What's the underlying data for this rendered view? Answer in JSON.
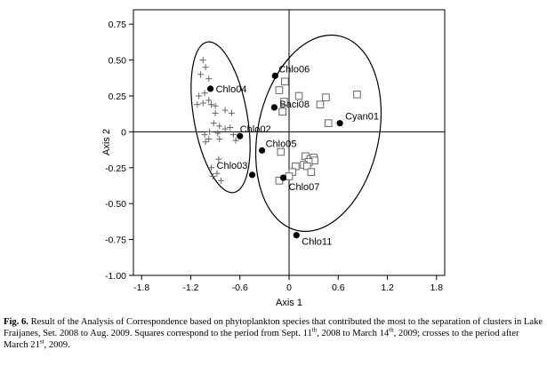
{
  "chart_data": {
    "type": "scatter",
    "title": "",
    "xlabel": "Axis 1",
    "ylabel": "Axis 2",
    "xlim": [
      -1.9,
      1.9
    ],
    "ylim": [
      -1.0,
      0.85
    ],
    "xticks": [
      -1.8,
      -1.2,
      -0.6,
      0,
      0.6,
      1.2,
      1.8
    ],
    "xtick_labels": [
      "-1.8",
      "-1.2",
      "-0.6",
      "0",
      "0.6",
      "1.2",
      "1.8"
    ],
    "yticks": [
      -1.0,
      -0.75,
      -0.5,
      -0.25,
      0,
      0.25,
      0.5,
      0.75
    ],
    "ytick_labels": [
      "-1.00",
      "-0.75",
      "-0.50",
      "-0.25",
      "0",
      "0.25",
      "0.50",
      "0.75"
    ],
    "reference_lines": {
      "x": 0,
      "y": 0
    },
    "grid": false,
    "legend": "none",
    "series": [
      {
        "marker": "cross",
        "color": "#666666",
        "points": [
          [
            -1.05,
            0.5
          ],
          [
            -1.02,
            0.45
          ],
          [
            -1.08,
            0.4
          ],
          [
            -0.98,
            0.37
          ],
          [
            -1.03,
            0.27
          ],
          [
            -1.1,
            0.25
          ],
          [
            -0.98,
            0.22
          ],
          [
            -1.05,
            0.2
          ],
          [
            -1.12,
            0.19
          ],
          [
            -0.95,
            0.19
          ],
          [
            -0.9,
            0.18
          ],
          [
            -0.78,
            0.15
          ],
          [
            -0.9,
            0.13
          ],
          [
            -0.92,
            0.06
          ],
          [
            -0.85,
            0.04
          ],
          [
            -0.78,
            0.02
          ],
          [
            -0.97,
            0.0
          ],
          [
            -0.87,
            -0.01
          ],
          [
            -1.03,
            -0.02
          ],
          [
            -0.68,
            -0.02
          ],
          [
            -0.72,
            0.03
          ],
          [
            -0.85,
            -0.05
          ],
          [
            -0.98,
            -0.05
          ],
          [
            -1.02,
            -0.07
          ],
          [
            -0.7,
            0.13
          ],
          [
            -0.65,
            -0.06
          ],
          [
            -0.95,
            -0.25
          ],
          [
            -0.88,
            -0.29
          ],
          [
            -0.93,
            -0.31
          ],
          [
            -0.83,
            -0.34
          ],
          [
            -0.86,
            -0.19
          ]
        ]
      },
      {
        "marker": "open-square",
        "color": "#666666",
        "points": [
          [
            -0.05,
            0.35
          ],
          [
            -0.12,
            0.29
          ],
          [
            0.12,
            0.25
          ],
          [
            0.45,
            0.24
          ],
          [
            0.83,
            0.26
          ],
          [
            -0.06,
            0.21
          ],
          [
            0.38,
            0.19
          ],
          [
            -0.08,
            0.14
          ],
          [
            0.48,
            0.06
          ],
          [
            -0.1,
            -0.14
          ],
          [
            0.2,
            -0.17
          ],
          [
            0.26,
            -0.19
          ],
          [
            0.3,
            -0.18
          ],
          [
            0.31,
            -0.2
          ],
          [
            0.24,
            -0.21
          ],
          [
            0.18,
            -0.23
          ],
          [
            0.22,
            -0.24
          ],
          [
            0.08,
            -0.24
          ],
          [
            0.27,
            -0.28
          ],
          [
            0.04,
            -0.28
          ],
          [
            0.0,
            -0.31
          ],
          [
            -0.12,
            -0.34
          ]
        ]
      },
      {
        "marker": "filled-circle",
        "color": "#000000",
        "points": [
          {
            "label": "Chlo04",
            "x": -0.96,
            "y": 0.3
          },
          {
            "label": "Chlo06",
            "x": -0.17,
            "y": 0.39
          },
          {
            "label": "Baci08",
            "x": -0.18,
            "y": 0.17
          },
          {
            "label": "Cyan01",
            "x": 0.62,
            "y": 0.06
          },
          {
            "label": "Chlo02",
            "x": -0.6,
            "y": -0.03
          },
          {
            "label": "Chlo05",
            "x": -0.33,
            "y": -0.13
          },
          {
            "label": "Chlo03",
            "x": -0.45,
            "y": -0.3
          },
          {
            "label": "Chlo07",
            "x": -0.07,
            "y": -0.32
          },
          {
            "label": "Chlo11",
            "x": 0.09,
            "y": -0.72
          }
        ]
      }
    ],
    "point_labels": [
      "Chlo04",
      "Chlo06",
      "Baci08",
      "Cyan01",
      "Chlo02",
      "Chlo05",
      "Chlo03",
      "Chlo07",
      "Chlo11"
    ]
  },
  "caption": {
    "fig_label": "Fig. 6.",
    "text_1": " Result of the Analysis of Correspondence based on phytoplankton species that contributed the most to the separation of clusters in Lake Fraijanes, Set. 2008 to Aug. 2009. Squares correspond to the period from Sept. 11",
    "sup_1": "th",
    "text_2": ", 2008 to March 14",
    "sup_2": "th",
    "text_3": ", 2009; crosses to the period after March 21",
    "sup_3": "st",
    "text_4": ", 2009."
  }
}
